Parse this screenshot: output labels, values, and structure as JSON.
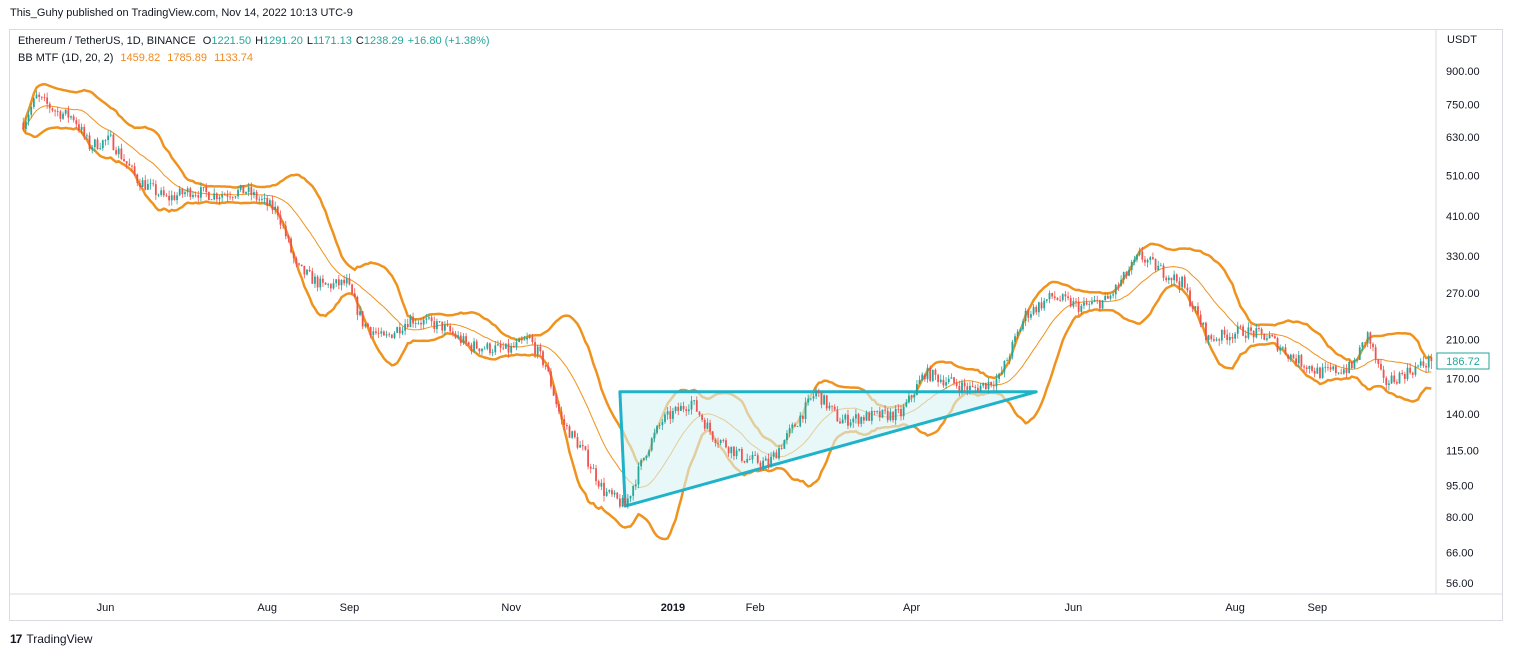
{
  "header": {
    "published": "This_Guhy published on TradingView.com, Nov 14, 2022 10:13 UTC-9"
  },
  "legend": {
    "symbol": "Ethereum / TetherUS, 1D, BINANCE",
    "o_label": "O",
    "o_value": "1221.50",
    "h_label": "H",
    "h_value": "1291.20",
    "l_label": "L",
    "l_value": "1171.13",
    "c_label": "C",
    "c_value": "1238.29",
    "change": "+16.80 (+1.38%)",
    "indicator": "BB MTF (1D, 20, 2)",
    "ind_values": [
      "1459.82",
      "1785.89",
      "1133.74"
    ]
  },
  "currency": "USDT",
  "last_price": "186.72",
  "footer": {
    "brand": "TradingView",
    "mark": "17"
  },
  "colors": {
    "up": "#26a69a",
    "down": "#ef5350",
    "band": "#f0931e",
    "pattern": "#1fb3c9",
    "fill": "#d8f4f3"
  },
  "chart_data": {
    "type": "candlestick",
    "title": "Ethereum / TetherUS, 1D, BINANCE",
    "y_scale": "log",
    "y_ticks": [
      900,
      750,
      630,
      510,
      410,
      330,
      270,
      210,
      170,
      140,
      115,
      95,
      80,
      66,
      56
    ],
    "y_tick_labels": [
      "900.00",
      "750.00",
      "630.00",
      "510.00",
      "410.00",
      "330.00",
      "270.00",
      "210.00",
      "170.00",
      "140.00",
      "115.00",
      "95.00",
      "80.00",
      "66.00",
      "56.00"
    ],
    "x_tick_labels": [
      "Jun",
      "Aug",
      "Sep",
      "Nov",
      "2019",
      "Feb",
      "Apr",
      "Jun",
      "Aug",
      "Sep"
    ],
    "price_path": [
      [
        "2018-05-01",
        680
      ],
      [
        "2018-05-06",
        780
      ],
      [
        "2018-05-14",
        720
      ],
      [
        "2018-05-20",
        700
      ],
      [
        "2018-05-26",
        600
      ],
      [
        "2018-06-03",
        620
      ],
      [
        "2018-06-13",
        500
      ],
      [
        "2018-06-24",
        450
      ],
      [
        "2018-07-03",
        470
      ],
      [
        "2018-07-12",
        460
      ],
      [
        "2018-07-24",
        470
      ],
      [
        "2018-08-05",
        420
      ],
      [
        "2018-08-12",
        310
      ],
      [
        "2018-08-22",
        280
      ],
      [
        "2018-08-31",
        285
      ],
      [
        "2018-09-06",
        230
      ],
      [
        "2018-09-14",
        210
      ],
      [
        "2018-09-24",
        235
      ],
      [
        "2018-10-06",
        225
      ],
      [
        "2018-10-16",
        203
      ],
      [
        "2018-10-31",
        198
      ],
      [
        "2018-11-08",
        210
      ],
      [
        "2018-11-14",
        182
      ],
      [
        "2018-11-20",
        135
      ],
      [
        "2018-11-28",
        115
      ],
      [
        "2018-12-06",
        92
      ],
      [
        "2018-12-14",
        85
      ],
      [
        "2018-12-22",
        115
      ],
      [
        "2018-12-28",
        135
      ],
      [
        "2019-01-08",
        150
      ],
      [
        "2019-01-16",
        125
      ],
      [
        "2019-01-28",
        110
      ],
      [
        "2019-02-06",
        107
      ],
      [
        "2019-02-16",
        132
      ],
      [
        "2019-02-24",
        158
      ],
      [
        "2019-03-05",
        135
      ],
      [
        "2019-03-15",
        138
      ],
      [
        "2019-03-28",
        140
      ],
      [
        "2019-04-06",
        175
      ],
      [
        "2019-04-14",
        168
      ],
      [
        "2019-04-24",
        160
      ],
      [
        "2019-05-04",
        170
      ],
      [
        "2019-05-14",
        240
      ],
      [
        "2019-05-24",
        265
      ],
      [
        "2019-06-04",
        250
      ],
      [
        "2019-06-14",
        260
      ],
      [
        "2019-06-26",
        330
      ],
      [
        "2019-07-06",
        300
      ],
      [
        "2019-07-12",
        285
      ],
      [
        "2019-07-22",
        210
      ],
      [
        "2019-08-04",
        220
      ],
      [
        "2019-08-14",
        212
      ],
      [
        "2019-08-22",
        192
      ],
      [
        "2019-09-02",
        175
      ],
      [
        "2019-09-14",
        180
      ],
      [
        "2019-09-20",
        215
      ],
      [
        "2019-09-26",
        165
      ],
      [
        "2019-10-04",
        175
      ],
      [
        "2019-10-14",
        186.72
      ]
    ],
    "bollinger": {
      "period": 20,
      "stddev": 2
    },
    "pattern": {
      "type": "ascending-triangle",
      "resistance": 158,
      "points": [
        [
          "2018-12-12",
          158
        ],
        [
          "2018-12-14",
          85
        ],
        [
          "2019-05-18",
          158
        ]
      ]
    }
  }
}
